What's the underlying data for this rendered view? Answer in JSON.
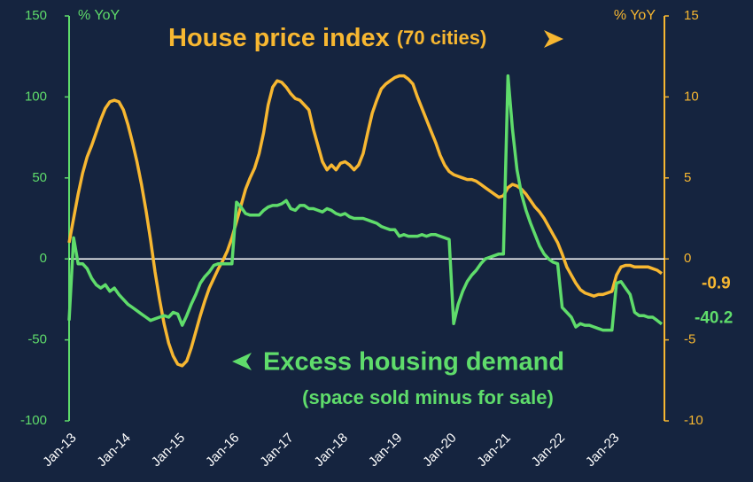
{
  "chart_data": {
    "type": "line",
    "title": "House price index",
    "title_note": "(70 cities)",
    "annotation": "Excess housing demand",
    "annotation_note": "(space sold minus for sale)",
    "ylabel": "% YoY",
    "y2label": "% YoY",
    "categories": [
      "Jan-13",
      null,
      null,
      null,
      null,
      null,
      null,
      null,
      null,
      null,
      null,
      null,
      "Jan-14",
      null,
      null,
      null,
      null,
      null,
      null,
      null,
      null,
      null,
      null,
      null,
      "Jan-15",
      null,
      null,
      null,
      null,
      null,
      null,
      null,
      null,
      null,
      null,
      null,
      "Jan-16",
      null,
      null,
      null,
      null,
      null,
      null,
      null,
      null,
      null,
      null,
      null,
      "Jan-17",
      null,
      null,
      null,
      null,
      null,
      null,
      null,
      null,
      null,
      null,
      null,
      "Jan-18",
      null,
      null,
      null,
      null,
      null,
      null,
      null,
      null,
      null,
      null,
      null,
      "Jan-19",
      null,
      null,
      null,
      null,
      null,
      null,
      null,
      null,
      null,
      null,
      null,
      "Jan-20",
      null,
      null,
      null,
      null,
      null,
      null,
      null,
      null,
      null,
      null,
      null,
      "Jan-21",
      null,
      null,
      null,
      null,
      null,
      null,
      null,
      null,
      null,
      null,
      null,
      "Jan-22",
      null,
      null,
      null,
      null,
      null,
      null,
      null,
      null,
      null,
      null,
      null,
      "Jan-23",
      null,
      null,
      null,
      null,
      null,
      null,
      null,
      null,
      null,
      null,
      null
    ],
    "series": [
      {
        "name": "Excess housing demand",
        "color": "#5fdc6b",
        "axis": "y",
        "values": [
          -38,
          13,
          -3,
          -3,
          -6,
          -12,
          -16,
          -18,
          -16,
          -20,
          -18,
          -22,
          -25,
          -28,
          -30,
          -32,
          -34,
          -36,
          -38,
          -37,
          -36,
          -35,
          -36,
          -33,
          -34,
          -41,
          -35,
          -28,
          -22,
          -15,
          -11,
          -8,
          -4,
          -3,
          -3,
          -3,
          -3,
          35,
          32,
          28,
          27,
          27,
          27,
          30,
          32,
          33,
          33,
          34,
          36,
          31,
          30,
          33,
          33,
          31,
          31,
          30,
          29,
          31,
          30,
          28,
          27,
          28,
          26,
          25,
          25,
          25,
          24,
          23,
          22,
          20,
          19,
          18,
          18,
          14,
          15,
          14,
          14,
          14,
          15,
          14,
          15,
          15,
          14,
          13,
          12,
          -40,
          -28,
          -20,
          -14,
          -10,
          -7,
          -3,
          0,
          1,
          2,
          3,
          3,
          113,
          80,
          55,
          40,
          30,
          22,
          15,
          8,
          3,
          0,
          -2,
          -3,
          -30,
          -33,
          -36,
          -42,
          -40,
          -41,
          -41,
          -42,
          -43,
          -44,
          -44,
          -44,
          -15,
          -14,
          -18,
          -22,
          -33,
          -35,
          -35,
          -36,
          -36,
          -38,
          -40.2
        ]
      },
      {
        "name": "House price index",
        "color": "#f7b731",
        "axis": "y2",
        "values": [
          1.0,
          2.5,
          4.0,
          5.3,
          6.3,
          7.0,
          7.8,
          8.6,
          9.3,
          9.7,
          9.8,
          9.7,
          9.2,
          8.3,
          7.2,
          6.0,
          4.6,
          3.0,
          1.2,
          -0.8,
          -2.5,
          -4.0,
          -5.2,
          -6.0,
          -6.5,
          -6.6,
          -6.3,
          -5.5,
          -4.5,
          -3.5,
          -2.6,
          -1.8,
          -1.2,
          -0.6,
          -0.1,
          0.5,
          1.3,
          2.3,
          3.3,
          4.3,
          5.0,
          5.6,
          6.5,
          7.8,
          9.5,
          10.6,
          11.0,
          10.9,
          10.6,
          10.2,
          9.9,
          9.8,
          9.5,
          9.2,
          8.0,
          7.0,
          6.0,
          5.5,
          5.8,
          5.5,
          5.9,
          6.0,
          5.8,
          5.5,
          5.8,
          6.5,
          7.8,
          9.0,
          9.8,
          10.5,
          10.8,
          11.0,
          11.2,
          11.3,
          11.3,
          11.1,
          10.8,
          10.0,
          9.3,
          8.6,
          7.9,
          7.2,
          6.4,
          5.8,
          5.4,
          5.2,
          5.1,
          5.0,
          4.9,
          4.9,
          4.8,
          4.6,
          4.4,
          4.2,
          4.0,
          3.8,
          3.9,
          4.4,
          4.6,
          4.5,
          4.3,
          4.0,
          3.6,
          3.2,
          2.9,
          2.5,
          2.0,
          1.5,
          1.0,
          0.3,
          -0.5,
          -1.0,
          -1.5,
          -1.9,
          -2.1,
          -2.2,
          -2.3,
          -2.2,
          -2.2,
          -2.1,
          -2.0,
          -1.0,
          -0.5,
          -0.4,
          -0.4,
          -0.5,
          -0.5,
          -0.5,
          -0.5,
          -0.6,
          -0.7,
          -0.9
        ]
      }
    ],
    "ylim": [
      -100,
      150
    ],
    "yticks": [
      -100,
      -50,
      0,
      50,
      100,
      150
    ],
    "y2lim": [
      -10,
      15
    ],
    "y2ticks": [
      -10,
      -5,
      0,
      5,
      10,
      15
    ]
  }
}
